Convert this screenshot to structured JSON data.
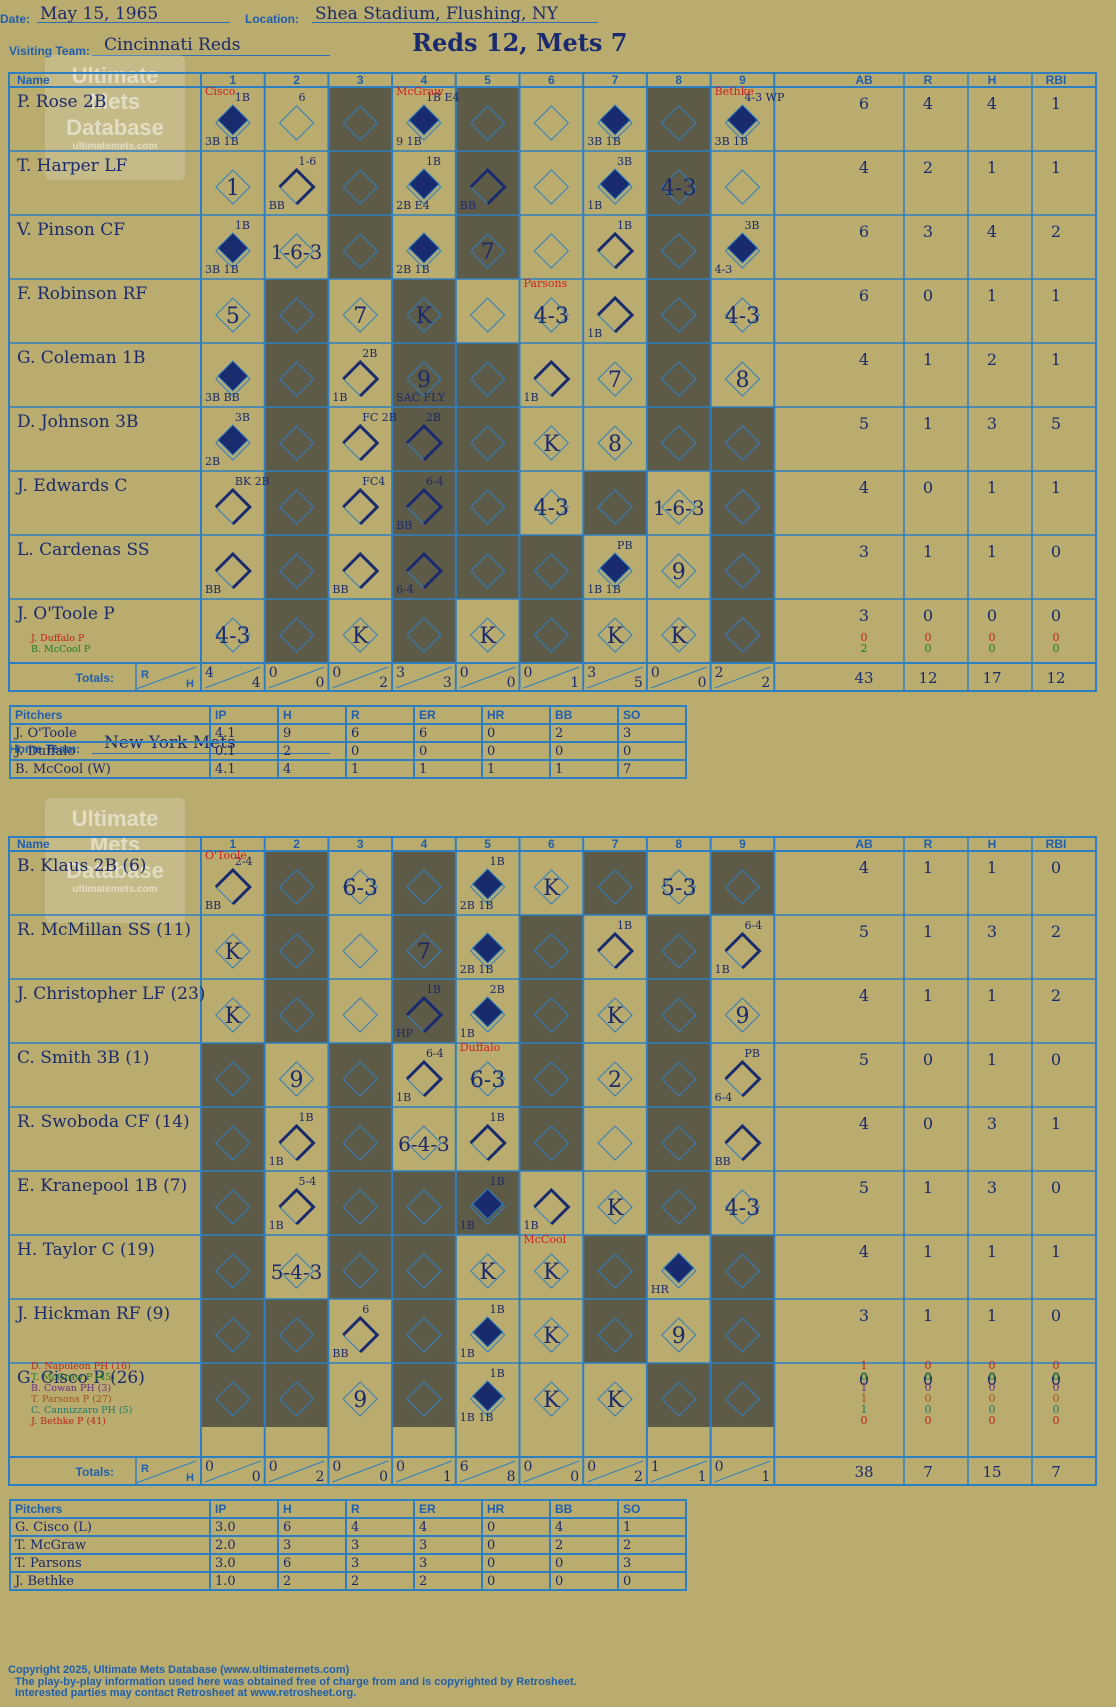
{
  "header": {
    "date_label": "Date:",
    "date": "May 15, 1965",
    "location_label": "Location:",
    "location": "Shea Stadium, Flushing, NY",
    "visiting_label": "Visiting Team:",
    "visiting_team": "Cincinnati Reds",
    "home_label": "Home Team:",
    "home_team": "New York Mets",
    "result": "Reds 12, Mets 7"
  },
  "logo": {
    "line1": "Ultimate",
    "line2": "Mets",
    "line3": "Database",
    "url": "ultimatemets.com"
  },
  "columns": {
    "name": "Name",
    "innings": [
      "1",
      "2",
      "3",
      "4",
      "5",
      "6",
      "7",
      "8",
      "9"
    ],
    "stats": [
      "AB",
      "R",
      "H",
      "RBI"
    ],
    "totals": "Totals:",
    "r": "R",
    "h": "H"
  },
  "visitors": {
    "players": [
      {
        "name": "P. Rose 2B",
        "stats": [
          "6",
          "4",
          "4",
          "1"
        ]
      },
      {
        "name": "T. Harper LF",
        "stats": [
          "4",
          "2",
          "1",
          "1"
        ]
      },
      {
        "name": "V. Pinson CF",
        "stats": [
          "6",
          "3",
          "4",
          "2"
        ]
      },
      {
        "name": "F. Robinson RF",
        "stats": [
          "6",
          "0",
          "1",
          "1"
        ]
      },
      {
        "name": "G. Coleman 1B",
        "stats": [
          "4",
          "1",
          "2",
          "1"
        ]
      },
      {
        "name": "D. Johnson 3B",
        "stats": [
          "5",
          "1",
          "3",
          "5"
        ]
      },
      {
        "name": "J. Edwards C",
        "stats": [
          "4",
          "0",
          "1",
          "1"
        ]
      },
      {
        "name": "L. Cardenas SS",
        "stats": [
          "3",
          "1",
          "1",
          "0"
        ]
      },
      {
        "name": "J. O'Toole P",
        "stats": [
          "3",
          "0",
          "0",
          "0"
        ]
      }
    ],
    "subs": [
      {
        "name": "J. Duffalo P",
        "color": "#c0231e",
        "stats": [
          "0",
          "0",
          "0",
          "0"
        ]
      },
      {
        "name": "B. McCool P",
        "color": "#1d7a2a",
        "stats": [
          "2",
          "0",
          "0",
          "0"
        ]
      }
    ],
    "totals": {
      "innings": [
        [
          "4",
          "4"
        ],
        [
          "0",
          "0"
        ],
        [
          "0",
          "2"
        ],
        [
          "3",
          "3"
        ],
        [
          "0",
          "0"
        ],
        [
          "0",
          "1"
        ],
        [
          "3",
          "5"
        ],
        [
          "0",
          "0"
        ],
        [
          "2",
          "2"
        ]
      ],
      "stats": [
        "43",
        "12",
        "17",
        "12"
      ]
    },
    "marks": [
      [
        "8",
        "",
        "pc:McGraw",
        "8",
        "",
        "",
        "",
        "",
        ""
      ],
      [
        "1",
        "",
        "",
        "",
        "",
        "",
        "",
        "4-3",
        ""
      ],
      [
        "",
        "1-6-3",
        "",
        "",
        "7",
        "",
        "",
        "",
        ""
      ],
      [
        "5",
        "",
        "7",
        "K",
        "",
        "4-3",
        "",
        "",
        "4-3"
      ],
      [
        "",
        "",
        "",
        "9",
        "",
        "",
        "7",
        "",
        "8"
      ],
      [
        "",
        "",
        "",
        "",
        "",
        "K",
        "8",
        "",
        ""
      ],
      [
        "",
        "",
        "",
        "",
        "",
        "4-3",
        "",
        "1-6-3",
        ""
      ],
      [
        "",
        "",
        "",
        "",
        "",
        "",
        "",
        "9",
        ""
      ],
      [
        "4-3",
        "",
        "K",
        "",
        "K",
        "",
        "K",
        "K",
        ""
      ]
    ],
    "notes": [
      [
        [
          "1B",
          "3B 1B"
        ],
        [
          "6",
          ""
        ],
        [
          "",
          ""
        ],
        [
          "1B E4",
          "9 1B"
        ],
        [
          "",
          ""
        ],
        [
          "",
          ""
        ],
        [
          "",
          "3B 1B"
        ],
        [
          "",
          ""
        ],
        [
          "4-3 WP",
          "3B 1B"
        ]
      ],
      [
        [
          "",
          ""
        ],
        [
          "1-6",
          "BB"
        ],
        [
          "",
          ""
        ],
        [
          "1B",
          "2B E4"
        ],
        [
          "",
          "BB"
        ],
        [
          "",
          ""
        ],
        [
          "3B",
          "1B"
        ],
        [
          "",
          ""
        ],
        [
          "",
          ""
        ]
      ],
      [
        [
          "1B",
          "3B 1B"
        ],
        [
          "",
          ""
        ],
        [
          "",
          ""
        ],
        [
          "",
          "2B 1B"
        ],
        [
          "",
          ""
        ],
        [
          "",
          ""
        ],
        [
          "1B",
          ""
        ],
        [
          "",
          ""
        ],
        [
          "3B",
          "4-3"
        ]
      ],
      [
        [
          "",
          ""
        ],
        [
          "",
          ""
        ],
        [
          "",
          ""
        ],
        [
          "",
          ""
        ],
        [
          "",
          ""
        ],
        [
          "",
          ""
        ],
        [
          "",
          "1B"
        ],
        [
          "",
          ""
        ],
        [
          "",
          ""
        ]
      ],
      [
        [
          "",
          "3B BB"
        ],
        [
          "",
          ""
        ],
        [
          "2B",
          "1B"
        ],
        [
          "",
          "SAC FLY"
        ],
        [
          "",
          ""
        ],
        [
          "",
          "1B"
        ],
        [
          "",
          ""
        ],
        [
          "",
          ""
        ],
        [
          "",
          ""
        ]
      ],
      [
        [
          "3B",
          "2B"
        ],
        [
          "",
          ""
        ],
        [
          "FC 2B",
          ""
        ],
        [
          "2B",
          ""
        ],
        [
          "",
          ""
        ],
        [
          "",
          ""
        ],
        [
          "",
          ""
        ],
        [
          "",
          ""
        ],
        [
          "",
          ""
        ]
      ],
      [
        [
          "BK 2B",
          ""
        ],
        [
          "",
          ""
        ],
        [
          "FC4",
          ""
        ],
        [
          "6-4",
          "BB"
        ],
        [
          "",
          ""
        ],
        [
          "",
          ""
        ],
        [
          "",
          ""
        ],
        [
          "",
          ""
        ],
        [
          "",
          ""
        ]
      ],
      [
        [
          "",
          "BB"
        ],
        [
          "",
          ""
        ],
        [
          "",
          "BB"
        ],
        [
          "",
          "6-4"
        ],
        [
          "",
          ""
        ],
        [
          "",
          ""
        ],
        [
          "PB",
          "1B 1B"
        ],
        [
          "",
          ""
        ],
        [
          "",
          ""
        ]
      ],
      [
        [
          "",
          ""
        ],
        [
          "",
          ""
        ],
        [
          "",
          ""
        ],
        [
          "",
          ""
        ],
        [
          "",
          ""
        ],
        [
          "",
          ""
        ],
        [
          "",
          ""
        ],
        [
          "",
          ""
        ],
        [
          "",
          ""
        ]
      ]
    ],
    "pitcher_names_inline": [
      {
        "row": 0,
        "col": 0,
        "text": "Cisco"
      },
      {
        "row": 0,
        "col": 3,
        "text": "McGraw"
      },
      {
        "row": 0,
        "col": 8,
        "text": "Bethke"
      },
      {
        "row": 3,
        "col": 5,
        "text": "Parsons"
      }
    ]
  },
  "visitor_pitchers": {
    "header": [
      "Pitchers",
      "IP",
      "H",
      "R",
      "ER",
      "HR",
      "BB",
      "SO"
    ],
    "rows": [
      [
        "J. O'Toole",
        "4.1",
        "9",
        "6",
        "6",
        "0",
        "2",
        "3"
      ],
      [
        "J. Duffalo",
        "0.1",
        "2",
        "0",
        "0",
        "0",
        "0",
        "0"
      ],
      [
        "B. McCool (W)",
        "4.1",
        "4",
        "1",
        "1",
        "1",
        "1",
        "7"
      ]
    ]
  },
  "home": {
    "players": [
      {
        "name": "B. Klaus 2B (6)",
        "stats": [
          "4",
          "1",
          "1",
          "0"
        ]
      },
      {
        "name": "R. McMillan SS (11)",
        "stats": [
          "5",
          "1",
          "3",
          "2"
        ]
      },
      {
        "name": "J. Christopher LF (23)",
        "stats": [
          "4",
          "1",
          "1",
          "2"
        ]
      },
      {
        "name": "C. Smith 3B (1)",
        "stats": [
          "5",
          "0",
          "1",
          "0"
        ]
      },
      {
        "name": "R. Swoboda CF (14)",
        "stats": [
          "4",
          "0",
          "3",
          "1"
        ]
      },
      {
        "name": "E. Kranepool 1B (7)",
        "stats": [
          "5",
          "1",
          "3",
          "0"
        ]
      },
      {
        "name": "H. Taylor C (19)",
        "stats": [
          "4",
          "1",
          "1",
          "1"
        ]
      },
      {
        "name": "J. Hickman RF (9)",
        "stats": [
          "3",
          "1",
          "1",
          "0"
        ]
      },
      {
        "name": "G. Cisco P (26)",
        "stats": [
          "0",
          "0",
          "0",
          "0"
        ]
      }
    ],
    "subs": [
      {
        "name": "D. Napoleon PH (16)",
        "color": "#c0231e",
        "stats": [
          "1",
          "0",
          "0",
          "0"
        ]
      },
      {
        "name": "T. McGraw P (45)",
        "color": "#1d7a2a",
        "stats": [
          "0",
          "0",
          "0",
          "0"
        ]
      },
      {
        "name": "B. Cowan PH (3)",
        "color": "#6a2a8a",
        "stats": [
          "1",
          "0",
          "0",
          "0"
        ]
      },
      {
        "name": "T. Parsons P (27)",
        "color": "#a0521a",
        "stats": [
          "1",
          "0",
          "0",
          "0"
        ]
      },
      {
        "name": "C. Cannizzaro PH (5)",
        "color": "#1d7a6a",
        "stats": [
          "1",
          "0",
          "0",
          "0"
        ]
      },
      {
        "name": "J. Bethke P (41)",
        "color": "#c0231e",
        "stats": [
          "0",
          "0",
          "0",
          "0"
        ]
      }
    ],
    "totals": {
      "innings": [
        [
          "0",
          "0"
        ],
        [
          "0",
          "2"
        ],
        [
          "0",
          "0"
        ],
        [
          "0",
          "1"
        ],
        [
          "6",
          "8"
        ],
        [
          "0",
          "0"
        ],
        [
          "0",
          "2"
        ],
        [
          "1",
          "1"
        ],
        [
          "0",
          "1"
        ]
      ],
      "stats": [
        "38",
        "7",
        "15",
        "7"
      ]
    },
    "marks": [
      [
        "",
        "",
        "6-3",
        "",
        "",
        "K",
        "",
        "5-3",
        ""
      ],
      [
        "K",
        "",
        "",
        "7",
        "",
        "",
        "",
        "",
        ""
      ],
      [
        "K",
        "",
        "",
        "",
        "",
        "",
        "K",
        "",
        "9"
      ],
      [
        "",
        "9",
        "",
        "",
        "6-3",
        "",
        "2",
        "",
        ""
      ],
      [
        "",
        "",
        "",
        "6-4-3",
        "",
        "",
        "",
        "",
        ""
      ],
      [
        "",
        "",
        "",
        "",
        "",
        "",
        "K",
        "",
        "4-3"
      ],
      [
        "",
        "5-4-3",
        "",
        "",
        "K",
        "K",
        "",
        "",
        ""
      ],
      [
        "",
        "",
        "",
        "",
        "",
        "K",
        "",
        "9",
        ""
      ],
      [
        "",
        "",
        "9",
        "",
        "",
        "K",
        "K",
        "",
        ""
      ]
    ],
    "notes": [
      [
        [
          "2-4",
          "BB"
        ],
        [
          "",
          ""
        ],
        [
          "",
          ""
        ],
        [
          "",
          ""
        ],
        [
          "1B",
          "2B 1B"
        ],
        [
          "",
          ""
        ],
        [
          "",
          ""
        ],
        [
          "",
          ""
        ],
        [
          "",
          ""
        ]
      ],
      [
        [
          "",
          ""
        ],
        [
          "",
          ""
        ],
        [
          "",
          ""
        ],
        [
          "",
          ""
        ],
        [
          "",
          "2B 1B"
        ],
        [
          "",
          ""
        ],
        [
          "1B",
          ""
        ],
        [
          "",
          ""
        ],
        [
          "6-4",
          "1B"
        ]
      ],
      [
        [
          "",
          ""
        ],
        [
          "",
          ""
        ],
        [
          "",
          ""
        ],
        [
          "1B",
          "HP"
        ],
        [
          "2B",
          "1B"
        ],
        [
          "",
          ""
        ],
        [
          "",
          ""
        ],
        [
          "",
          ""
        ],
        [
          "",
          ""
        ]
      ],
      [
        [
          "",
          ""
        ],
        [
          "",
          ""
        ],
        [
          "",
          ""
        ],
        [
          "6-4",
          "1B"
        ],
        [
          "",
          ""
        ],
        [
          "",
          ""
        ],
        [
          "",
          ""
        ],
        [
          "",
          ""
        ],
        [
          "PB",
          "6-4"
        ]
      ],
      [
        [
          "",
          ""
        ],
        [
          "1B",
          "1B"
        ],
        [
          "",
          ""
        ],
        [
          "",
          ""
        ],
        [
          "1B",
          ""
        ],
        [
          "",
          ""
        ],
        [
          "",
          ""
        ],
        [
          "",
          ""
        ],
        [
          "",
          "BB"
        ]
      ],
      [
        [
          "",
          ""
        ],
        [
          "5-4",
          "1B"
        ],
        [
          "",
          ""
        ],
        [
          "",
          ""
        ],
        [
          "1B",
          "1B"
        ],
        [
          "",
          "1B"
        ],
        [
          "",
          ""
        ],
        [
          "",
          ""
        ],
        [
          "",
          ""
        ]
      ],
      [
        [
          "",
          ""
        ],
        [
          "",
          ""
        ],
        [
          "",
          ""
        ],
        [
          "",
          ""
        ],
        [
          "",
          ""
        ],
        [
          "",
          ""
        ],
        [
          "",
          ""
        ],
        [
          "",
          "HR"
        ],
        [
          "",
          ""
        ]
      ],
      [
        [
          "",
          ""
        ],
        [
          "",
          ""
        ],
        [
          "6",
          "BB"
        ],
        [
          "",
          ""
        ],
        [
          "1B",
          "1B"
        ],
        [
          "",
          ""
        ],
        [
          "",
          ""
        ],
        [
          "",
          ""
        ],
        [
          "",
          ""
        ]
      ],
      [
        [
          "",
          ""
        ],
        [
          "",
          ""
        ],
        [
          "",
          ""
        ],
        [
          "",
          ""
        ],
        [
          "1B",
          "1B 1B"
        ],
        [
          "",
          ""
        ],
        [
          "",
          ""
        ],
        [
          "",
          ""
        ],
        [
          "",
          ""
        ]
      ]
    ],
    "pitcher_names_inline": [
      {
        "row": 0,
        "col": 0,
        "text": "O'Toole"
      },
      {
        "row": 3,
        "col": 4,
        "text": "Duffalo"
      },
      {
        "row": 6,
        "col": 5,
        "text": "McCool"
      }
    ]
  },
  "home_pitchers": {
    "header": [
      "Pitchers",
      "IP",
      "H",
      "R",
      "ER",
      "HR",
      "BB",
      "SO"
    ],
    "rows": [
      [
        "G. Cisco (L)",
        "3.0",
        "6",
        "4",
        "4",
        "0",
        "4",
        "1"
      ],
      [
        "T. McGraw",
        "2.0",
        "3",
        "3",
        "3",
        "0",
        "2",
        "2"
      ],
      [
        "T. Parsons",
        "3.0",
        "6",
        "3",
        "3",
        "0",
        "0",
        "3"
      ],
      [
        "J. Bethke",
        "1.0",
        "2",
        "2",
        "2",
        "0",
        "0",
        "0"
      ]
    ]
  },
  "footer": {
    "line1": "Copyright 2025, Ultimate Mets Database (www.ultimatemets.com)",
    "line2": "The play-by-play information used here was obtained free of charge from and is copyrighted by Retrosheet.",
    "line3": "Interested parties may contact Retrosheet at www.retrosheet.org."
  },
  "colors": {
    "background": "#b9ac6e",
    "grid": "#2e7fc2",
    "shade": "#5e5a48",
    "diamond": "#1a2a6e",
    "pitcher_change": "#d21f1f"
  }
}
